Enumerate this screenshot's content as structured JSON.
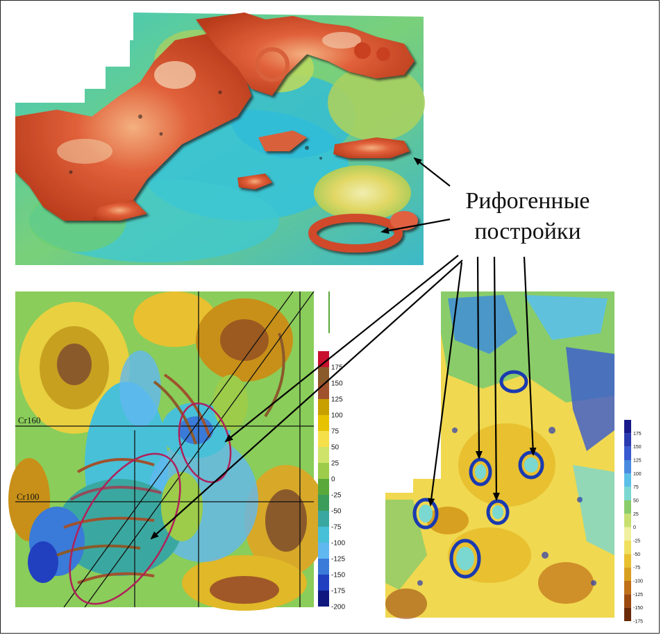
{
  "annotation": {
    "line1": "Рифогенные",
    "line2": "постройки"
  },
  "left_map": {
    "grid_labels": [
      "Cr160",
      "Cr100"
    ],
    "scale": {
      "labels": [
        "175",
        "150",
        "125",
        "100",
        "75",
        "50",
        "25",
        "0",
        "-25",
        "-50",
        "-75",
        "-100",
        "-125",
        "-150",
        "-175",
        "-200"
      ],
      "colors": [
        "#c8102e",
        "#8b5a2b",
        "#a0522d",
        "#c8a000",
        "#e6c200",
        "#f5e04a",
        "#cfe36b",
        "#9ccc4a",
        "#5aa83a",
        "#3c9c5a",
        "#3aa8a0",
        "#48c0d8",
        "#60b8f0",
        "#3a7ad8",
        "#2040c0",
        "#101880"
      ]
    }
  },
  "right_map": {
    "scale": {
      "labels": [
        "175",
        "150",
        "125",
        "100",
        "75",
        "50",
        "25",
        "0",
        "-25",
        "-50",
        "-75",
        "-100",
        "-125",
        "-150",
        "-175"
      ],
      "colors": [
        "#1a1a8c",
        "#2a3ab0",
        "#3a5ad0",
        "#4a8ae0",
        "#5ac0e8",
        "#7ad8d0",
        "#8acc6a",
        "#c8e070",
        "#f0f0a0",
        "#f0e060",
        "#e8c030",
        "#d8a020",
        "#c07018",
        "#9c4a10",
        "#6a2a08"
      ]
    }
  }
}
